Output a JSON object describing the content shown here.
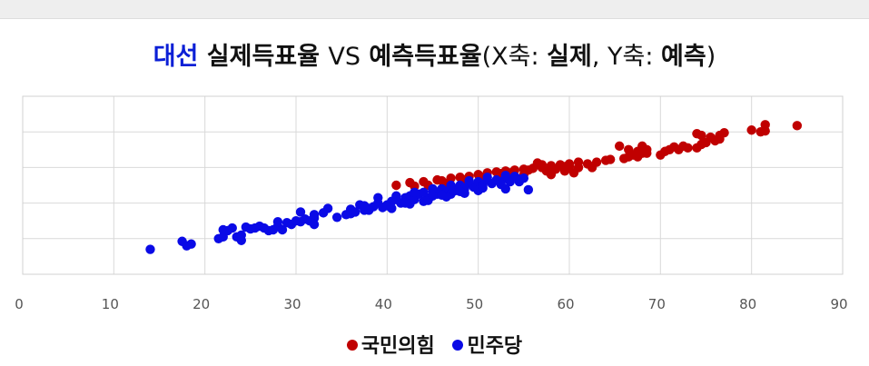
{
  "title": {
    "part1": "대선",
    "part2": " 실제득표율 ",
    "part3": "VS",
    "part4": " 예측득표율",
    "part5": "(X축: ",
    "part6": "실제",
    "part7": ", Y축: ",
    "part8": "예측",
    "part9": ")"
  },
  "legend": [
    {
      "label": "국민의힘",
      "color": "#c00000",
      "icon": "circle-marker"
    },
    {
      "label": "민주당",
      "color": "#0a0ae6",
      "icon": "circle-marker"
    }
  ],
  "chart_data": {
    "type": "scatter",
    "xlim": [
      0,
      90
    ],
    "ylim": [
      0,
      100
    ],
    "x_ticks": [
      "0",
      "10",
      "20",
      "30",
      "40",
      "50",
      "60",
      "70",
      "80",
      "90"
    ],
    "grid": true,
    "legend_position": "bottom-center",
    "series": [
      {
        "name": "국민의힘",
        "color": "#c00000",
        "points": [
          [
            41,
            50
          ],
          [
            42.5,
            51.5
          ],
          [
            44,
            52
          ],
          [
            45.5,
            53
          ],
          [
            46,
            52.5
          ],
          [
            47,
            54
          ],
          [
            48,
            54.5
          ],
          [
            49,
            55
          ],
          [
            50,
            56
          ],
          [
            51,
            57
          ],
          [
            52,
            57.5
          ],
          [
            53,
            58
          ],
          [
            54,
            58.5
          ],
          [
            55,
            59
          ],
          [
            56,
            59.5
          ],
          [
            57,
            60
          ],
          [
            58,
            61
          ],
          [
            59,
            61.5
          ],
          [
            60,
            62
          ],
          [
            57.5,
            58
          ],
          [
            58.5,
            59
          ],
          [
            59.5,
            60.5
          ],
          [
            61,
            60
          ],
          [
            62,
            62
          ],
          [
            63,
            63
          ],
          [
            64,
            64
          ],
          [
            60.5,
            57
          ],
          [
            58,
            56
          ],
          [
            55.5,
            58.5
          ],
          [
            53.5,
            57
          ],
          [
            52.5,
            56.5
          ],
          [
            66,
            65
          ],
          [
            66.5,
            66
          ],
          [
            67,
            67
          ],
          [
            67.5,
            66
          ],
          [
            68,
            68
          ],
          [
            68.5,
            68
          ],
          [
            66.5,
            70
          ],
          [
            67.5,
            69
          ],
          [
            68.5,
            70
          ],
          [
            65.5,
            72
          ],
          [
            68,
            72
          ],
          [
            70,
            67
          ],
          [
            70.5,
            69
          ],
          [
            71,
            70
          ],
          [
            71.5,
            71.5
          ],
          [
            72,
            70
          ],
          [
            72.5,
            72
          ],
          [
            73,
            71
          ],
          [
            74,
            71
          ],
          [
            74.5,
            73
          ],
          [
            75,
            74
          ],
          [
            75.5,
            77
          ],
          [
            76,
            75
          ],
          [
            74.5,
            78
          ],
          [
            74,
            79
          ],
          [
            76.5,
            78
          ],
          [
            77,
            79.5
          ],
          [
            76.5,
            76
          ],
          [
            80,
            81
          ],
          [
            81,
            80
          ],
          [
            81.5,
            80.5
          ],
          [
            81.5,
            84
          ],
          [
            85,
            83.5
          ],
          [
            55,
            56
          ],
          [
            50.5,
            54.5
          ],
          [
            48.5,
            53
          ],
          [
            46.5,
            51
          ],
          [
            44.5,
            50
          ],
          [
            43,
            49.5
          ],
          [
            56.5,
            62.5
          ],
          [
            57,
            61.5
          ],
          [
            59.5,
            58
          ],
          [
            61,
            63
          ],
          [
            60,
            60.5
          ],
          [
            62.5,
            60
          ],
          [
            64.5,
            64.5
          ]
        ]
      },
      {
        "name": "민주당",
        "color": "#0a0ae6",
        "points": [
          [
            14,
            14
          ],
          [
            17.5,
            18.5
          ],
          [
            18,
            16
          ],
          [
            18.5,
            17
          ],
          [
            21.5,
            20
          ],
          [
            22,
            21
          ],
          [
            22.5,
            24.5
          ],
          [
            23,
            26
          ],
          [
            23.5,
            21
          ],
          [
            24,
            22
          ],
          [
            24,
            19
          ],
          [
            24.5,
            26.5
          ],
          [
            25,
            25.5
          ],
          [
            25.5,
            26
          ],
          [
            26,
            27
          ],
          [
            27,
            24.5
          ],
          [
            27.5,
            25
          ],
          [
            28,
            27
          ],
          [
            28.5,
            25
          ],
          [
            29,
            29
          ],
          [
            29.5,
            28
          ],
          [
            30,
            30
          ],
          [
            30.5,
            29.5
          ],
          [
            31,
            31
          ],
          [
            31.5,
            30
          ],
          [
            32,
            31.5
          ],
          [
            32,
            28
          ],
          [
            30.5,
            35
          ],
          [
            32,
            33.5
          ],
          [
            33,
            34.5
          ],
          [
            33.5,
            37
          ],
          [
            34.5,
            32
          ],
          [
            35.5,
            33.5
          ],
          [
            36,
            34
          ],
          [
            36.5,
            35
          ],
          [
            37,
            39
          ],
          [
            37.5,
            36
          ],
          [
            38,
            37
          ],
          [
            38.5,
            38
          ],
          [
            39,
            40
          ],
          [
            39.5,
            37.5
          ],
          [
            40,
            39
          ],
          [
            40.5,
            41
          ],
          [
            41,
            42
          ],
          [
            41.5,
            40
          ],
          [
            42,
            43
          ],
          [
            42.5,
            44
          ],
          [
            43,
            42
          ],
          [
            43.5,
            45
          ],
          [
            44,
            46
          ],
          [
            44.5,
            43
          ],
          [
            45,
            47
          ],
          [
            45.5,
            45
          ],
          [
            46,
            48
          ],
          [
            46.5,
            46
          ],
          [
            47,
            49
          ],
          [
            47.5,
            47
          ],
          [
            48,
            50
          ],
          [
            48.5,
            48
          ],
          [
            49,
            51
          ],
          [
            49.5,
            49
          ],
          [
            50,
            52
          ],
          [
            50.5,
            50
          ],
          [
            51,
            53
          ],
          [
            51.5,
            51
          ],
          [
            52,
            53
          ],
          [
            52.5,
            52
          ],
          [
            53,
            54
          ],
          [
            53.5,
            52
          ],
          [
            54,
            55
          ],
          [
            54.5,
            52
          ],
          [
            55.5,
            47.5
          ],
          [
            53,
            48
          ],
          [
            50,
            47
          ],
          [
            47,
            45
          ],
          [
            44,
            41
          ],
          [
            42,
            40
          ],
          [
            40,
            38.5
          ],
          [
            38,
            36
          ],
          [
            39,
            43
          ],
          [
            41,
            44
          ],
          [
            43,
            46
          ],
          [
            45,
            48
          ],
          [
            47,
            50
          ],
          [
            49,
            52.5
          ],
          [
            51,
            54.5
          ],
          [
            53,
            55.5
          ],
          [
            40.5,
            37
          ],
          [
            42.5,
            39.5
          ],
          [
            44.5,
            41.5
          ],
          [
            46.5,
            43.5
          ],
          [
            48.5,
            45.5
          ],
          [
            50.5,
            48.5
          ],
          [
            52.5,
            50.5
          ],
          [
            54.5,
            53.5
          ],
          [
            36,
            36.5
          ],
          [
            37.5,
            38.5
          ],
          [
            26.5,
            26
          ],
          [
            28,
            29.5
          ],
          [
            22,
            25
          ],
          [
            48,
            46.5
          ],
          [
            46,
            44.5
          ],
          [
            45,
            44
          ],
          [
            55,
            54
          ]
        ]
      }
    ]
  }
}
